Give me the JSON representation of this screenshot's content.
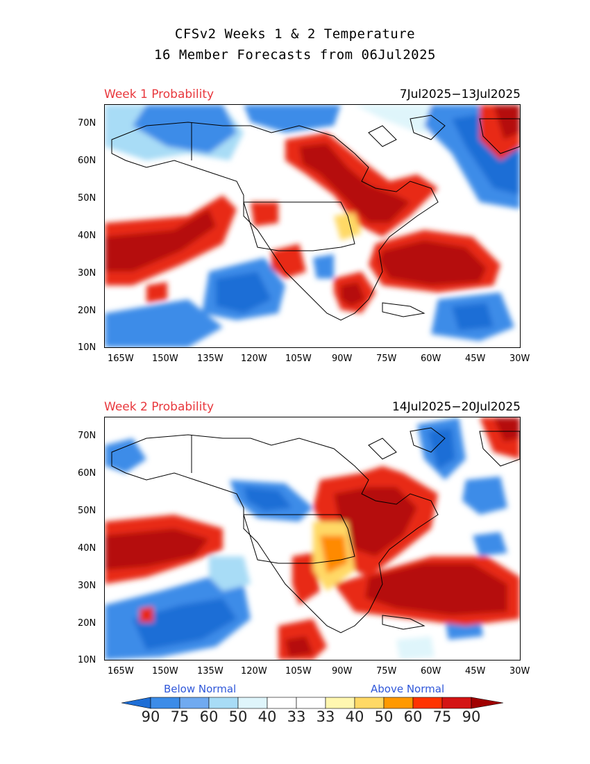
{
  "title_line1": "CFSv2 Weeks 1 & 2 Temperature",
  "title_line2": "16 Member Forecasts from 06Jul2025",
  "panels": [
    {
      "label": "Week 1 Probability",
      "dates": "7Jul2025−13Jul2025"
    },
    {
      "label": "Week 2 Probability",
      "dates": "14Jul2025−20Jul2025"
    }
  ],
  "lat_ticks": [
    "70N",
    "60N",
    "50N",
    "40N",
    "30N",
    "20N",
    "10N"
  ],
  "lon_ticks": [
    "165W",
    "150W",
    "135W",
    "120W",
    "105W",
    "90W",
    "75W",
    "60W",
    "45W",
    "30W"
  ],
  "legend": {
    "below_label": "Below Normal",
    "above_label": "Above Normal",
    "values": [
      "90",
      "75",
      "60",
      "50",
      "40",
      "33",
      "33",
      "40",
      "50",
      "60",
      "75",
      "90"
    ],
    "colors": [
      "#1e6ed6",
      "#3c8ce8",
      "#70aaf0",
      "#a8dcf6",
      "#dff5fb",
      "#ffffff",
      "#ffffff",
      "#fff7b0",
      "#ffd966",
      "#ff9900",
      "#ff3300",
      "#d41414",
      "#a00000"
    ]
  },
  "colors": {
    "deep_red": "#b50a0a",
    "red": "#e82a14",
    "orange": "#ff8a00",
    "yellow": "#ffd966",
    "pale_yellow": "#fff4b0",
    "deep_blue": "#1e6ed6",
    "blue": "#3c8ce8",
    "light_blue": "#a8dcf6",
    "pale_blue": "#dff5fb",
    "week_label": "#e8383d",
    "normal_label": "#2f57d9"
  }
}
